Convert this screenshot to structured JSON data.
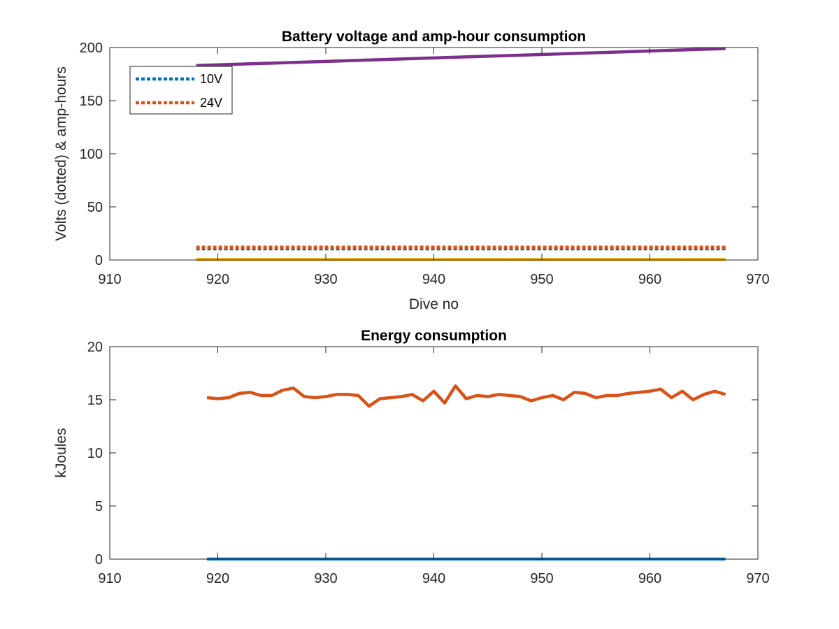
{
  "chart_data": [
    {
      "type": "line",
      "title": "Battery voltage and amp-hour consumption",
      "xlabel": "Dive no",
      "ylabel": "Volts (dotted) & amp-hours",
      "xlim": [
        910,
        970
      ],
      "ylim": [
        0,
        200
      ],
      "xticks": [
        "910",
        "920",
        "930",
        "940",
        "950",
        "960",
        "970"
      ],
      "yticks": [
        "0",
        "50",
        "100",
        "150",
        "200"
      ],
      "grid": false,
      "legend_position": "top-left",
      "series": [
        {
          "name": "10V",
          "style": "dotted",
          "color": "#0072BD",
          "x": [
            918,
            967
          ],
          "y": [
            10.5,
            10.5
          ]
        },
        {
          "name": "24V",
          "style": "dotted",
          "color": "#D95319",
          "x": [
            918,
            967
          ],
          "y": [
            12,
            12
          ]
        },
        {
          "style": "solid",
          "color": "#EDB120",
          "x": [
            918,
            967
          ],
          "y": [
            0.5,
            0.5
          ]
        },
        {
          "style": "solid",
          "color": "#7E2F8E",
          "x": [
            918,
            967
          ],
          "y": [
            183,
            199
          ]
        }
      ]
    },
    {
      "type": "line",
      "title": "Energy consumption",
      "xlabel": "",
      "ylabel": "kJoules",
      "xlim": [
        910,
        970
      ],
      "ylim": [
        0,
        20
      ],
      "xticks": [
        "910",
        "920",
        "930",
        "940",
        "950",
        "960",
        "970"
      ],
      "yticks": [
        "0",
        "5",
        "10",
        "15",
        "20"
      ],
      "grid": false,
      "series": [
        {
          "style": "solid",
          "color": "#0072BD",
          "x": [
            919,
            967
          ],
          "y": [
            0,
            0
          ]
        },
        {
          "style": "solid",
          "color": "#D95319",
          "x": [
            919,
            920,
            921,
            922,
            923,
            924,
            925,
            926,
            927,
            928,
            929,
            930,
            931,
            932,
            933,
            934,
            935,
            936,
            937,
            938,
            939,
            940,
            941,
            942,
            943,
            944,
            945,
            946,
            947,
            948,
            949,
            950,
            951,
            952,
            953,
            954,
            955,
            956,
            957,
            958,
            959,
            960,
            961,
            962,
            963,
            964,
            965,
            966,
            967
          ],
          "y": [
            15.2,
            15.1,
            15.2,
            15.6,
            15.7,
            15.4,
            15.4,
            15.9,
            16.1,
            15.3,
            15.2,
            15.3,
            15.5,
            15.5,
            15.4,
            14.4,
            15.1,
            15.2,
            15.3,
            15.5,
            14.9,
            15.8,
            14.7,
            16.3,
            15.1,
            15.4,
            15.3,
            15.5,
            15.4,
            15.3,
            14.9,
            15.2,
            15.4,
            15.0,
            15.7,
            15.6,
            15.2,
            15.4,
            15.4,
            15.6,
            15.7,
            15.8,
            16.0,
            15.2,
            15.8,
            15.0,
            15.5,
            15.8,
            15.5
          ]
        }
      ]
    }
  ]
}
